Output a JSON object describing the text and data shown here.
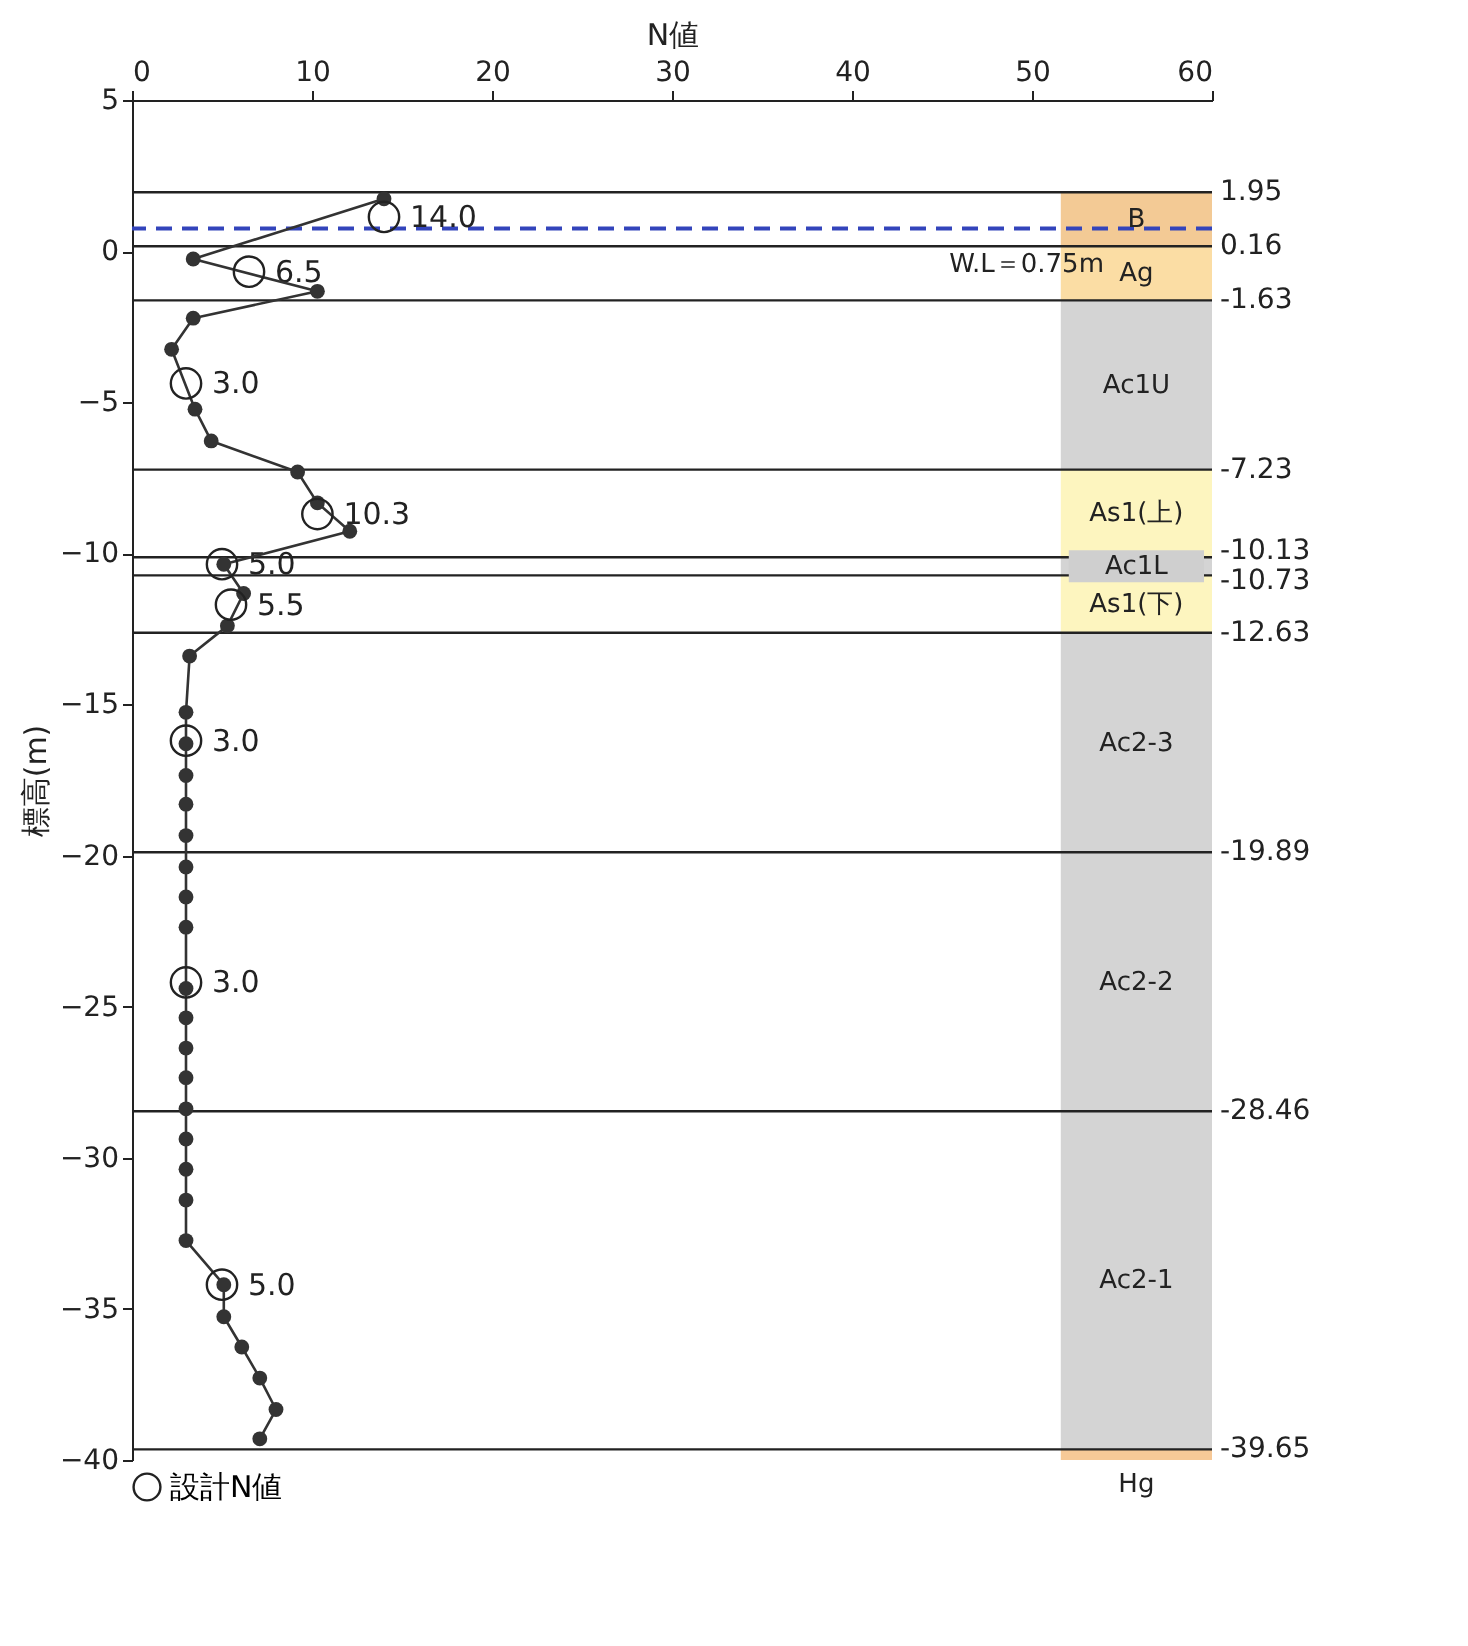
{
  "chart_data": {
    "type": "scatter",
    "xlabel": "N値",
    "ylabel": "標高(m)",
    "xlim": [
      0,
      60
    ],
    "xticks": [
      0,
      10,
      20,
      30,
      40,
      50,
      60
    ],
    "ylim": [
      -40,
      5
    ],
    "yticks": [
      5,
      0,
      -5,
      -10,
      -15,
      -20,
      -25,
      -30,
      -35,
      -40
    ],
    "grid": false,
    "legend": "bottom left",
    "marker": "circle",
    "series": [
      {
        "type": "line",
        "color": "#333333",
        "x": [
          14,
          3.4,
          10.3,
          3.4,
          2.2,
          3.5,
          4.4,
          9.2,
          10.3,
          12.1,
          5.1,
          6.2,
          5.3,
          3.2,
          3,
          3,
          3,
          3,
          3,
          3,
          3,
          3,
          3,
          3,
          3,
          3,
          3,
          3,
          3,
          3,
          3,
          5.1,
          5.1,
          6.1,
          7.1,
          8,
          7.1
        ],
        "values": [
          1.73,
          -0.26,
          -1.33,
          -2.22,
          -3.25,
          -5.23,
          -6.28,
          -7.31,
          -8.33,
          -9.27,
          -10.36,
          -11.33,
          -12.4,
          -13.4,
          -15.26,
          -16.3,
          -17.35,
          -18.3,
          -19.34,
          -20.38,
          -21.37,
          -22.37,
          -24.4,
          -25.37,
          -26.37,
          -27.35,
          -28.38,
          -29.38,
          -30.38,
          -31.4,
          -32.74,
          -34.2,
          -35.26,
          -36.26,
          -37.29,
          -38.33,
          -39.3
        ]
      },
      {
        "type": "scatter",
        "name": "設計N値",
        "color": "#222222",
        "x": [
          14,
          6.5,
          3,
          10.3,
          5,
          5.5,
          3,
          3,
          5
        ],
        "values": [
          1.13,
          -0.68,
          -4.38,
          -8.7,
          -10.36,
          -11.7,
          -16.2,
          -24.2,
          -34.2
        ]
      }
    ],
    "annotations": [
      {
        "text": "14.0",
        "x": 14,
        "y": 1.13
      },
      {
        "text": "6.5",
        "x": 6.5,
        "y": -0.68
      },
      {
        "text": "3.0",
        "x": 3,
        "y": -4.38
      },
      {
        "text": "10.3",
        "x": 10.3,
        "y": -8.7
      },
      {
        "text": "5.0",
        "x": 5,
        "y": -10.36
      },
      {
        "text": "5.5",
        "x": 5.5,
        "y": -11.7
      },
      {
        "text": "3.0",
        "x": 3,
        "y": -16.2
      },
      {
        "text": "3.0",
        "x": 3,
        "y": -24.2
      },
      {
        "text": "5.0",
        "x": 5,
        "y": -34.2
      }
    ],
    "ref_lines": [
      {
        "axis": "y",
        "value": 1.95,
        "label": "1.95"
      },
      {
        "axis": "y",
        "value": 0.16,
        "label": "0.16"
      },
      {
        "axis": "y",
        "value": -1.63,
        "label": "-1.63"
      },
      {
        "axis": "y",
        "value": -7.23,
        "label": "-7.23"
      },
      {
        "axis": "y",
        "value": -10.13,
        "label": "-10.13"
      },
      {
        "axis": "y",
        "value": -10.73,
        "label": "-10.73"
      },
      {
        "axis": "y",
        "value": -12.63,
        "label": "-12.63"
      },
      {
        "axis": "y",
        "value": -19.89,
        "label": "-19.89"
      },
      {
        "axis": "y",
        "value": -28.46,
        "label": "-28.46"
      },
      {
        "axis": "y",
        "value": -39.65,
        "label": "-39.65"
      },
      {
        "axis": "y",
        "value": 0.75,
        "label": "W.L＝0.75m",
        "color": "#3344bb",
        "line_style": "dashed"
      }
    ],
    "bands": [
      {
        "axis": "y",
        "from": 1.95,
        "to": 0.16,
        "label": "B",
        "color": "#f2c48a"
      },
      {
        "axis": "y",
        "from": 0.16,
        "to": -1.63,
        "label": "Ag",
        "color": "#fbd99a"
      },
      {
        "axis": "y",
        "from": -1.63,
        "to": -7.23,
        "label": "Ac1U",
        "color": "#cfcfcf"
      },
      {
        "axis": "y",
        "from": -7.23,
        "to": -10.13,
        "label": "As1(上)",
        "color": "#fdf4b8"
      },
      {
        "axis": "y",
        "from": -10.13,
        "to": -10.73,
        "label": "Ac1L",
        "color": "#cfcfcf"
      },
      {
        "axis": "y",
        "from": -10.73,
        "to": -12.63,
        "label": "As1(下)",
        "color": "#fdf4b8"
      },
      {
        "axis": "y",
        "from": -12.63,
        "to": -19.89,
        "label": "Ac2-3",
        "color": "#cfcfcf"
      },
      {
        "axis": "y",
        "from": -19.89,
        "to": -28.46,
        "label": "Ac2-2",
        "color": "#cfcfcf"
      },
      {
        "axis": "y",
        "from": -28.46,
        "to": -39.65,
        "label": "Ac2-1",
        "color": "#cfcfcf"
      },
      {
        "axis": "y",
        "from": -39.65,
        "to": -40,
        "label": "Hg",
        "color": "#f6c38c"
      }
    ]
  }
}
